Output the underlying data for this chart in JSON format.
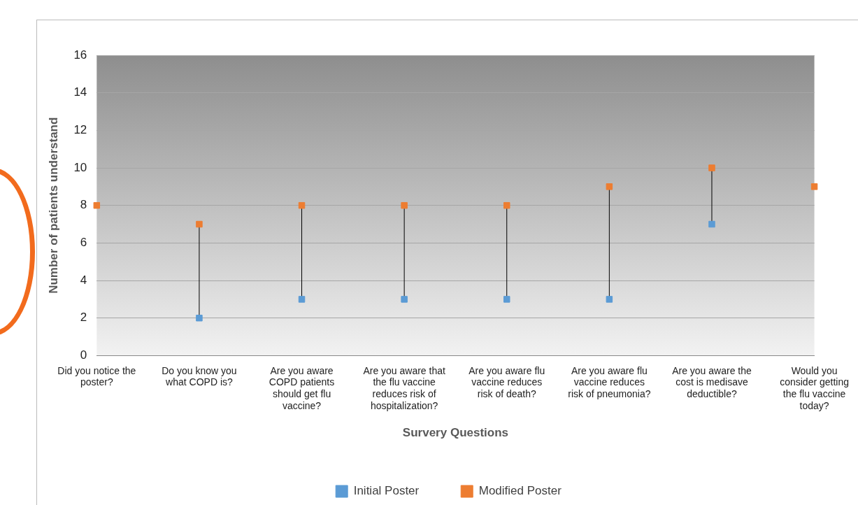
{
  "chart_data": {
    "type": "scatter",
    "xlabel": "Survery Questions",
    "ylabel": "Number of patients understand",
    "categories": [
      "Did you notice the poster?",
      "Do you know you what COPD is?",
      "Are you aware COPD patients should get flu vaccine?",
      "Are you aware that the flu vaccine reduces risk of hospitalization?",
      "Are you aware flu vaccine reduces risk of death?",
      "Are you aware flu vaccine reduces risk of pneumonia?",
      "Are you aware the cost is medisave deductible?",
      "Would you consider getting the flu vaccine today?"
    ],
    "series": [
      {
        "name": "Initial Poster",
        "color": "#5b9bd5",
        "values": [
          null,
          2,
          3,
          3,
          3,
          3,
          7,
          null
        ]
      },
      {
        "name": "Modified Poster",
        "color": "#ed7d31",
        "values": [
          8,
          7,
          8,
          8,
          8,
          9,
          10,
          9
        ]
      }
    ],
    "ylim": [
      0,
      16
    ],
    "yticks": [
      0,
      2,
      4,
      6,
      8,
      10,
      12,
      14,
      16
    ],
    "grid": "y",
    "legend": "bottom",
    "marker": "square"
  }
}
